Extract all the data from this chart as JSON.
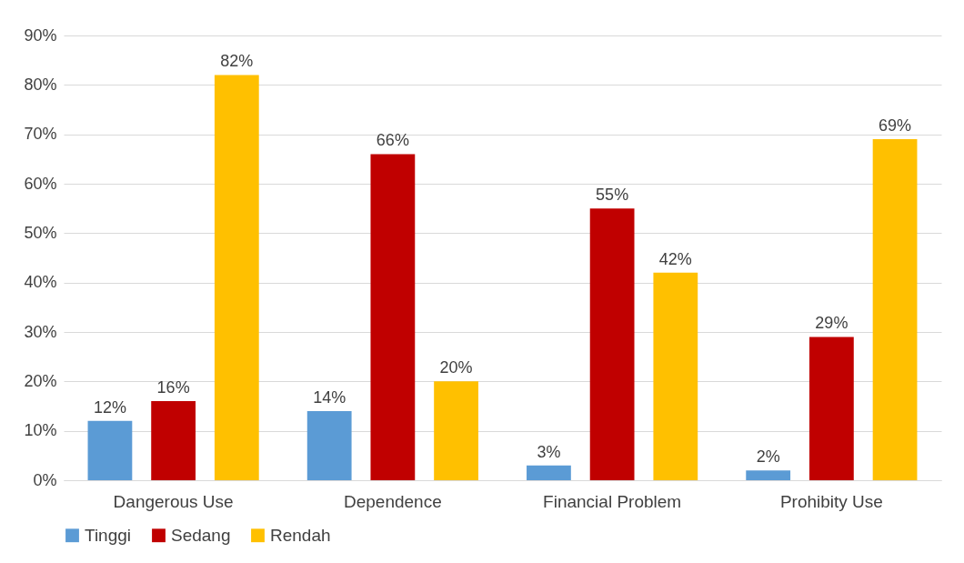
{
  "chart_data": {
    "type": "bar",
    "categories": [
      "Dangerous Use",
      "Dependence",
      "Financial Problem",
      "Prohibity Use"
    ],
    "series": [
      {
        "name": "Tinggi",
        "color": "#5b9bd5",
        "values": [
          12,
          14,
          3,
          2
        ],
        "value_labels": [
          "12%",
          "14%",
          "3%",
          "2%"
        ]
      },
      {
        "name": "Sedang",
        "color": "#c00000",
        "values": [
          16,
          66,
          55,
          29
        ],
        "value_labels": [
          "16%",
          "66%",
          "55%",
          "29%"
        ]
      },
      {
        "name": "Rendah",
        "color": "#ffc000",
        "values": [
          82,
          20,
          42,
          69
        ],
        "value_labels": [
          "82%",
          "20%",
          "42%",
          "69%"
        ]
      }
    ],
    "ylim": [
      0,
      90
    ],
    "yticks": [
      {
        "value": 0,
        "label": "0%"
      },
      {
        "value": 10,
        "label": "10%"
      },
      {
        "value": 20,
        "label": "20%"
      },
      {
        "value": 30,
        "label": "30%"
      },
      {
        "value": 40,
        "label": "40%"
      },
      {
        "value": 50,
        "label": "50%"
      },
      {
        "value": 60,
        "label": "60%"
      },
      {
        "value": 70,
        "label": "70%"
      },
      {
        "value": 80,
        "label": "80%"
      },
      {
        "value": 90,
        "label": "90%"
      }
    ],
    "grid": "y",
    "legend": "bottom"
  }
}
